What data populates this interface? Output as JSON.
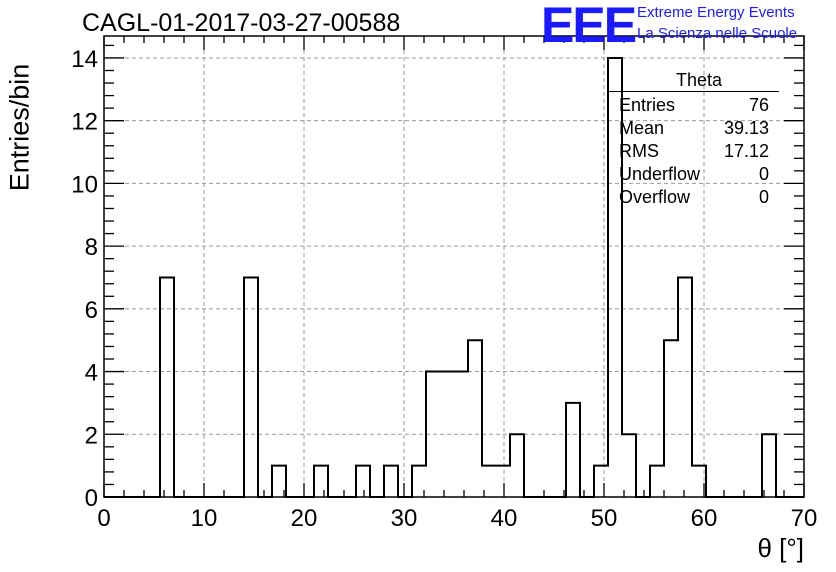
{
  "header": {
    "title": "CAGL-01-2017-03-27-00588",
    "logo_text": "EEE",
    "logo_line1": "Extreme Energy Events",
    "logo_line2": "La Scienza nelle Scuole"
  },
  "stats_box": {
    "title": "Theta",
    "rows": [
      {
        "label": "Entries",
        "value": "76"
      },
      {
        "label": "Mean",
        "value": "39.13"
      },
      {
        "label": "RMS",
        "value": "17.12"
      },
      {
        "label": "Underflow",
        "value": "0"
      },
      {
        "label": "Overflow",
        "value": "0"
      }
    ]
  },
  "colors": {
    "line": "#000000",
    "grid": "#999999",
    "logo": "#1a1aff"
  },
  "chart_data": {
    "type": "bar",
    "title": "CAGL-01-2017-03-27-00588",
    "xlabel": "θ [°]",
    "ylabel": "Entries/bin",
    "xlim": [
      0,
      70
    ],
    "ylim": [
      0,
      14.7
    ],
    "bin_width": 1.4,
    "xticks": [
      0,
      10,
      20,
      30,
      40,
      50,
      60,
      70
    ],
    "yticks": [
      0,
      2,
      4,
      6,
      8,
      10,
      12,
      14
    ],
    "grid": true,
    "legend": "top-right stats box",
    "bins": [
      {
        "x_low": 5.6,
        "value": 7
      },
      {
        "x_low": 14.0,
        "value": 7
      },
      {
        "x_low": 16.8,
        "value": 1
      },
      {
        "x_low": 21.0,
        "value": 1
      },
      {
        "x_low": 25.2,
        "value": 1
      },
      {
        "x_low": 28.0,
        "value": 1
      },
      {
        "x_low": 30.8,
        "value": 1
      },
      {
        "x_low": 32.2,
        "value": 4
      },
      {
        "x_low": 33.6,
        "value": 4
      },
      {
        "x_low": 35.0,
        "value": 4
      },
      {
        "x_low": 36.4,
        "value": 5
      },
      {
        "x_low": 37.8,
        "value": 1
      },
      {
        "x_low": 39.2,
        "value": 1
      },
      {
        "x_low": 40.6,
        "value": 2
      },
      {
        "x_low": 46.2,
        "value": 3
      },
      {
        "x_low": 49.0,
        "value": 1
      },
      {
        "x_low": 50.4,
        "value": 14
      },
      {
        "x_low": 51.8,
        "value": 2
      },
      {
        "x_low": 54.6,
        "value": 1
      },
      {
        "x_low": 56.0,
        "value": 5
      },
      {
        "x_low": 57.4,
        "value": 7
      },
      {
        "x_low": 58.8,
        "value": 1
      },
      {
        "x_low": 65.8,
        "value": 2
      }
    ]
  }
}
